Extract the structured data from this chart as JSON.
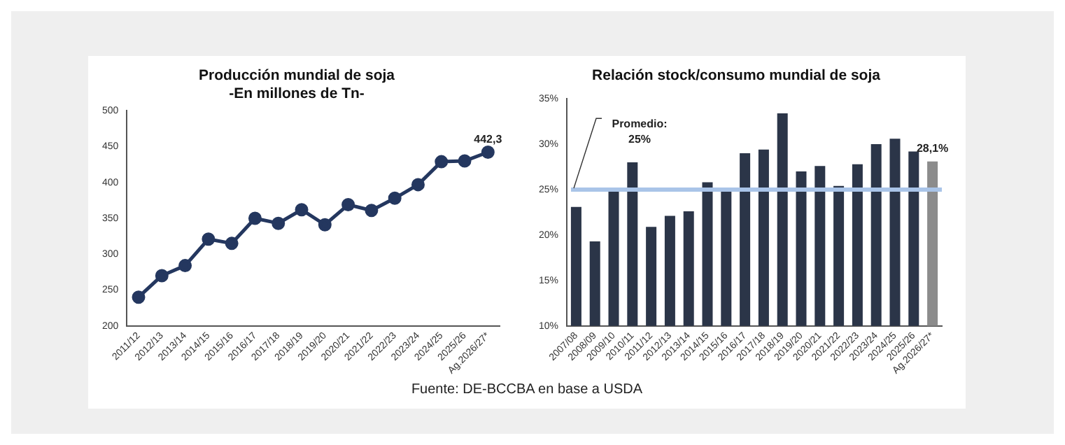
{
  "chart_data": [
    {
      "type": "line",
      "title": "Producción mundial de soja",
      "subtitle": "-En millones de Tn-",
      "categories": [
        "2011/12",
        "2012/13",
        "2013/14",
        "2014/15",
        "2015/16",
        "2016/17",
        "2017/18",
        "2018/19",
        "2019/20",
        "2020/21",
        "2021/22",
        "2022/23",
        "2023/24",
        "2024/25",
        "2025/26",
        "Ag.2026/27*"
      ],
      "series": [
        {
          "color": "#24375f",
          "values": [
            240,
            270,
            284,
            321,
            315,
            350,
            343,
            362,
            341,
            369,
            361,
            378,
            397,
            429,
            430,
            442.3
          ],
          "value_labels": [
            null,
            null,
            null,
            null,
            null,
            null,
            null,
            null,
            null,
            null,
            null,
            null,
            null,
            null,
            null,
            "442,3"
          ]
        }
      ],
      "ylim": [
        200,
        500
      ],
      "yticks": [
        200,
        250,
        300,
        350,
        400,
        450,
        500
      ],
      "grid": false,
      "legend": false,
      "marker": "circle",
      "line_style": "solid",
      "annotations": [
        "Fuente: DE-BCCBA en base a USDA"
      ]
    },
    {
      "type": "bar",
      "title": "Relación stock/consumo mundial de soja",
      "categories": [
        "2007/08",
        "2008/09",
        "2009/10",
        "2010/11",
        "2011/12",
        "2012/13",
        "2013/14",
        "2014/15",
        "2015/16",
        "2016/17",
        "2017/18",
        "2018/19",
        "2019/20",
        "2020/21",
        "2021/22",
        "2022/23",
        "2023/24",
        "2024/25",
        "2025/26",
        "Ag.2026/27*"
      ],
      "series": [
        {
          "colors": [
            "#2b3548",
            "#2b3548",
            "#2b3548",
            "#2b3548",
            "#2b3548",
            "#2b3548",
            "#2b3548",
            "#2b3548",
            "#2b3548",
            "#2b3548",
            "#2b3548",
            "#2b3548",
            "#2b3548",
            "#2b3548",
            "#2b3548",
            "#2b3548",
            "#2b3548",
            "#2b3548",
            "#2b3548",
            "#8c8c8c"
          ],
          "values": [
            23.1,
            19.3,
            25.1,
            28.0,
            20.9,
            22.1,
            22.6,
            25.8,
            25.0,
            29.0,
            29.4,
            33.4,
            27.0,
            27.6,
            25.4,
            27.8,
            30.0,
            30.6,
            29.2,
            28.1
          ],
          "value_labels": [
            null,
            null,
            null,
            null,
            null,
            null,
            null,
            null,
            null,
            null,
            null,
            null,
            null,
            null,
            null,
            null,
            null,
            null,
            null,
            "28,1%"
          ]
        }
      ],
      "ylim": [
        10,
        35
      ],
      "yticks": [
        {
          "value": 10,
          "label": "10%"
        },
        {
          "value": 15,
          "label": "15%"
        },
        {
          "value": 20,
          "label": "20%"
        },
        {
          "value": 25,
          "label": "25%"
        },
        {
          "value": 30,
          "label": "30%"
        },
        {
          "value": 35,
          "label": "35%"
        }
      ],
      "grid": false,
      "legend": false,
      "ref_lines": [
        {
          "axis": "y",
          "value": 25,
          "label": "Promedio: 25%",
          "color": "#a9c4e8"
        }
      ]
    }
  ]
}
